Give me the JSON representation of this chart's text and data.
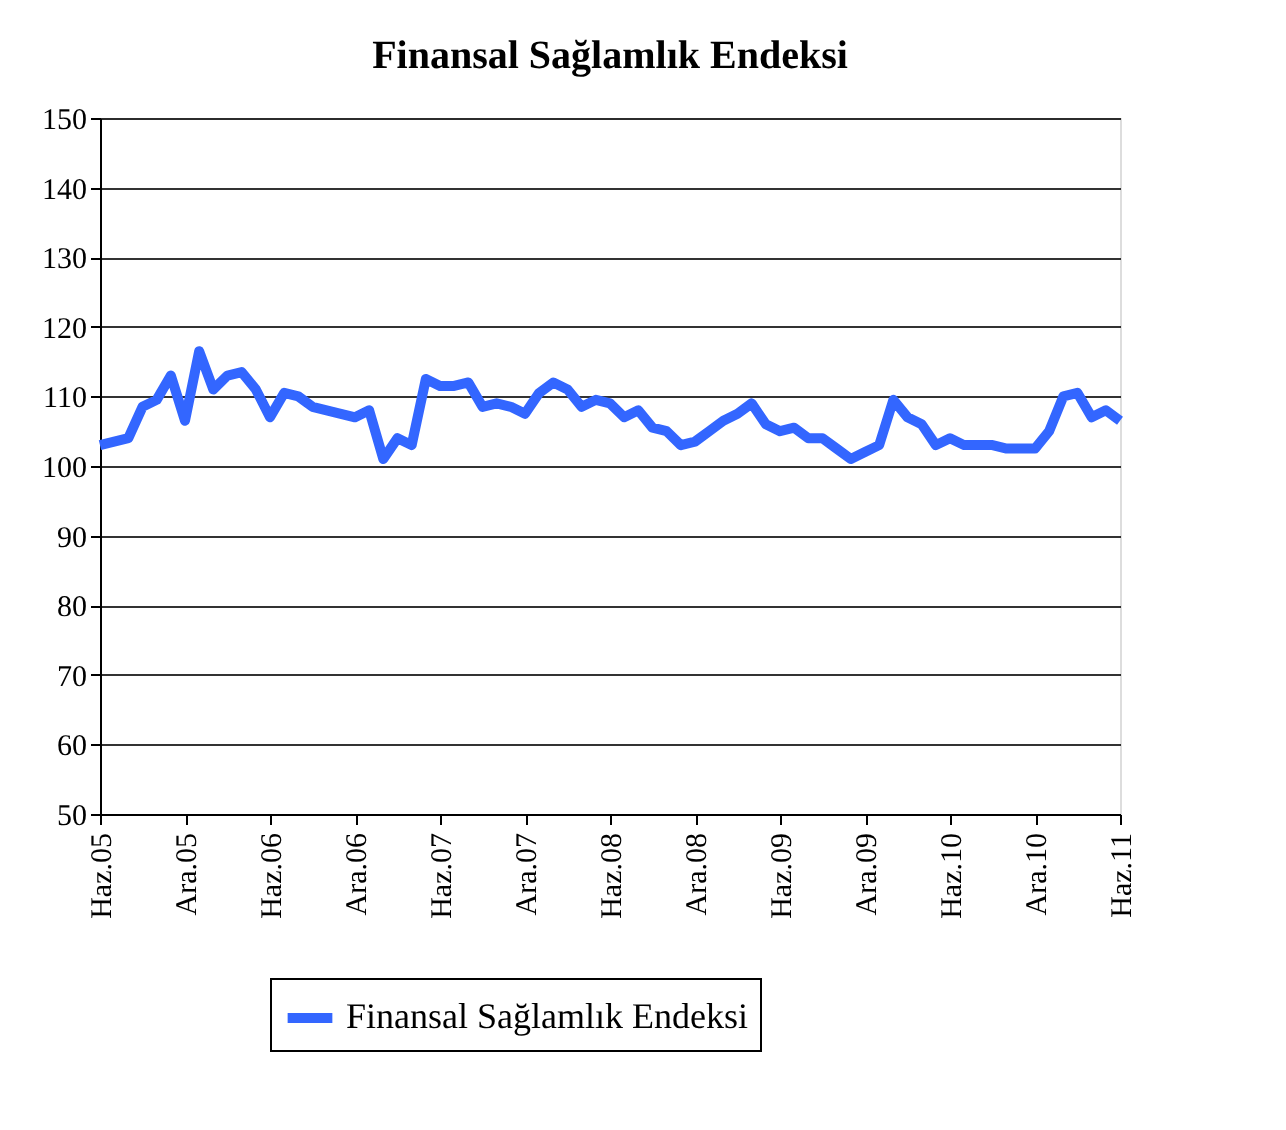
{
  "chart_data": {
    "type": "line",
    "title": "Finansal Sağlamlık Endeksi",
    "categories": [
      "Haz.05",
      null,
      null,
      null,
      null,
      null,
      "Ara.05",
      null,
      null,
      null,
      null,
      null,
      "Haz.06",
      null,
      null,
      null,
      null,
      null,
      "Ara.06",
      null,
      null,
      null,
      null,
      null,
      "Haz.07",
      null,
      null,
      null,
      null,
      null,
      "Ara.07",
      null,
      null,
      null,
      null,
      null,
      "Haz.08",
      null,
      null,
      null,
      null,
      null,
      "Ara.08",
      null,
      null,
      null,
      null,
      null,
      "Haz.09",
      null,
      null,
      null,
      null,
      null,
      "Ara.09",
      null,
      null,
      null,
      null,
      null,
      "Haz.10",
      null,
      null,
      null,
      null,
      null,
      "Ara.10",
      null,
      null,
      null,
      null,
      null,
      "Haz.11"
    ],
    "series": [
      {
        "name": "Finansal Sağlamlık Endeksi",
        "color": "#3366ff",
        "values": [
          103,
          103.5,
          104,
          108.5,
          109.5,
          113,
          106.5,
          116.5,
          111,
          113,
          113.5,
          111,
          107,
          110.5,
          110,
          108.5,
          108,
          107.5,
          107,
          108,
          101,
          104,
          103,
          112.5,
          111.5,
          111.5,
          112,
          108.5,
          109,
          108.5,
          107.5,
          110.5,
          112,
          111,
          108.5,
          109.5,
          109,
          107,
          108,
          105.5,
          105,
          103,
          103.5,
          105,
          106.5,
          107.5,
          109,
          106,
          105,
          105.5,
          104,
          104,
          102.5,
          101,
          102,
          103,
          109.5,
          107,
          106,
          103,
          104,
          103,
          103,
          103,
          102.5,
          102.5,
          102.5,
          105,
          110,
          110.5,
          107,
          108,
          106.5
        ]
      }
    ],
    "ylim": [
      50,
      150
    ],
    "yticks": [
      50,
      60,
      70,
      80,
      90,
      100,
      110,
      120,
      130,
      140,
      150
    ],
    "grid": "y",
    "legend": "bottom",
    "marker": "none",
    "line_style": "solid"
  }
}
